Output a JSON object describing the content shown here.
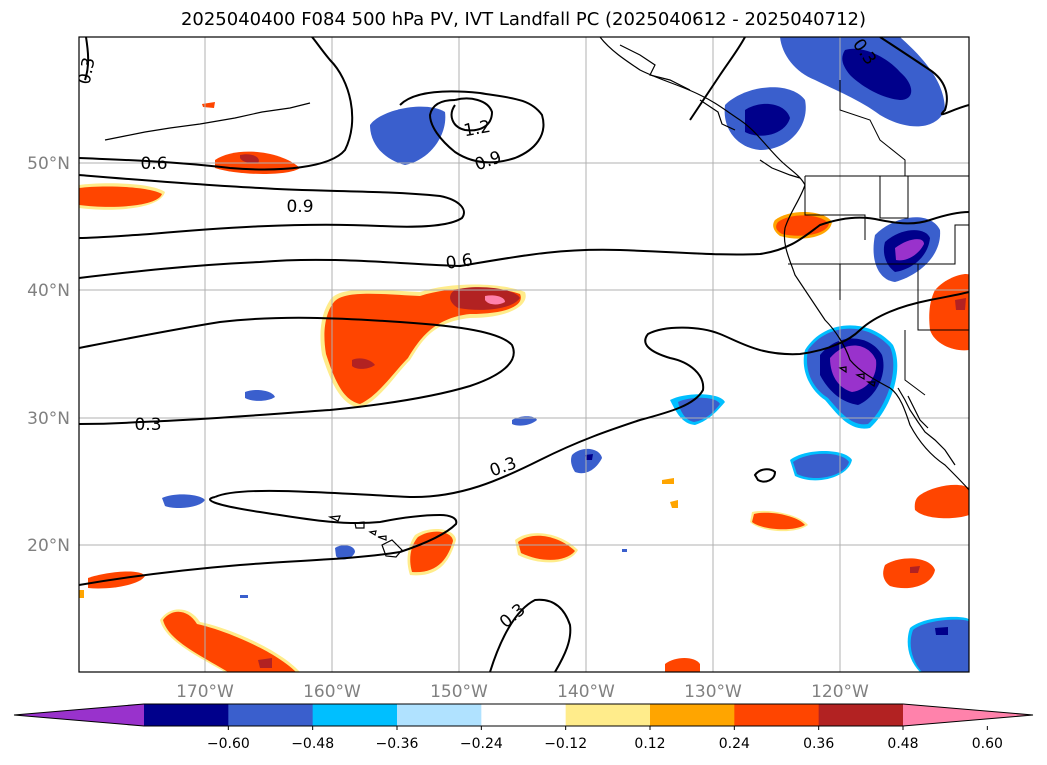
{
  "title": "2025040400 F084 500 hPa PV, IVT Landfall PC (2025040612 - 2025040712)",
  "latitude_labels": [
    "50°N",
    "40°N",
    "30°N",
    "20°N"
  ],
  "longitude_labels": [
    "170°W",
    "160°W",
    "150°W",
    "140°W",
    "130°W",
    "120°W"
  ],
  "contour_labels": [
    "0.3",
    "0.6",
    "0.9",
    "1.2",
    "0.9",
    "0.6",
    "0.3",
    "0.3",
    "0.3",
    "0.3"
  ],
  "colorbar": {
    "ticks": [
      "−0.60",
      "−0.48",
      "−0.36",
      "−0.24",
      "−0.12",
      "0.12",
      "0.24",
      "0.36",
      "0.48",
      "0.60"
    ],
    "colors": [
      "#9932cc",
      "#00008b",
      "#3a5fcd",
      "#00bfff",
      "#b0e2ff",
      "#ffffff",
      "#ffec8b",
      "#ffa500",
      "#ff4500",
      "#b22222",
      "#ff82ab"
    ]
  }
}
